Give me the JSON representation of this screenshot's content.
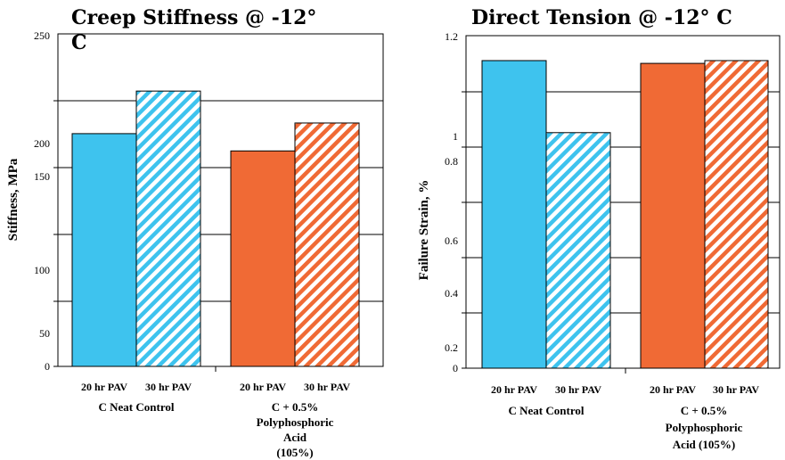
{
  "colors": {
    "blue": "#3ec3ee",
    "orange": "#f06a35",
    "outline": "#000000",
    "hatch_background": "#ffffff"
  },
  "chart_data": [
    {
      "type": "bar",
      "title_lines": [
        "Creep Stiffness @ -12°",
        "C"
      ],
      "xlabel": "",
      "ylabel": "Stiffness, MPa",
      "ytick_labels": [
        "0",
        "50",
        "100",
        "150",
        "200",
        "250"
      ],
      "ylim": [
        0,
        250
      ],
      "grid": true,
      "categories": [
        "20 hr PAV",
        "30 hr PAV",
        "20 hr PAV",
        "30 hr PAV"
      ],
      "groups": [
        {
          "lines": [
            "C Neat Control"
          ]
        },
        {
          "lines": [
            "C + 0.5%",
            "Polyphosphoric",
            "Acid",
            "(105%)"
          ]
        }
      ],
      "series": [
        {
          "values": [
            175,
            null,
            162,
            null
          ],
          "fill": "solid"
        },
        {
          "values": [
            null,
            207,
            null,
            183
          ],
          "fill": "hatched"
        }
      ],
      "bar_colors": [
        "blue",
        "blue",
        "orange",
        "orange"
      ]
    },
    {
      "type": "bar",
      "title_lines": [
        "Direct Tension @ -12° C"
      ],
      "xlabel": "",
      "ylabel": "Failure Strain, %",
      "ytick_labels": [
        "0",
        "0.2",
        "0.4",
        "0.6",
        "0.8",
        "1",
        "1.2"
      ],
      "ylim": [
        0,
        1.2
      ],
      "grid": true,
      "categories": [
        "20 hr PAV",
        "30 hr PAV",
        "20 hr PAV",
        "30 hr PAV"
      ],
      "groups": [
        {
          "lines": [
            "C Neat Control"
          ]
        },
        {
          "lines": [
            "C + 0.5%",
            "Polyphosphoric",
            "Acid (105%)"
          ]
        }
      ],
      "series": [
        {
          "values": [
            1.11,
            null,
            1.1,
            null
          ],
          "fill": "solid"
        },
        {
          "values": [
            null,
            0.85,
            null,
            1.11
          ],
          "fill": "hatched"
        }
      ],
      "bar_colors": [
        "blue",
        "blue",
        "orange",
        "orange"
      ]
    }
  ]
}
